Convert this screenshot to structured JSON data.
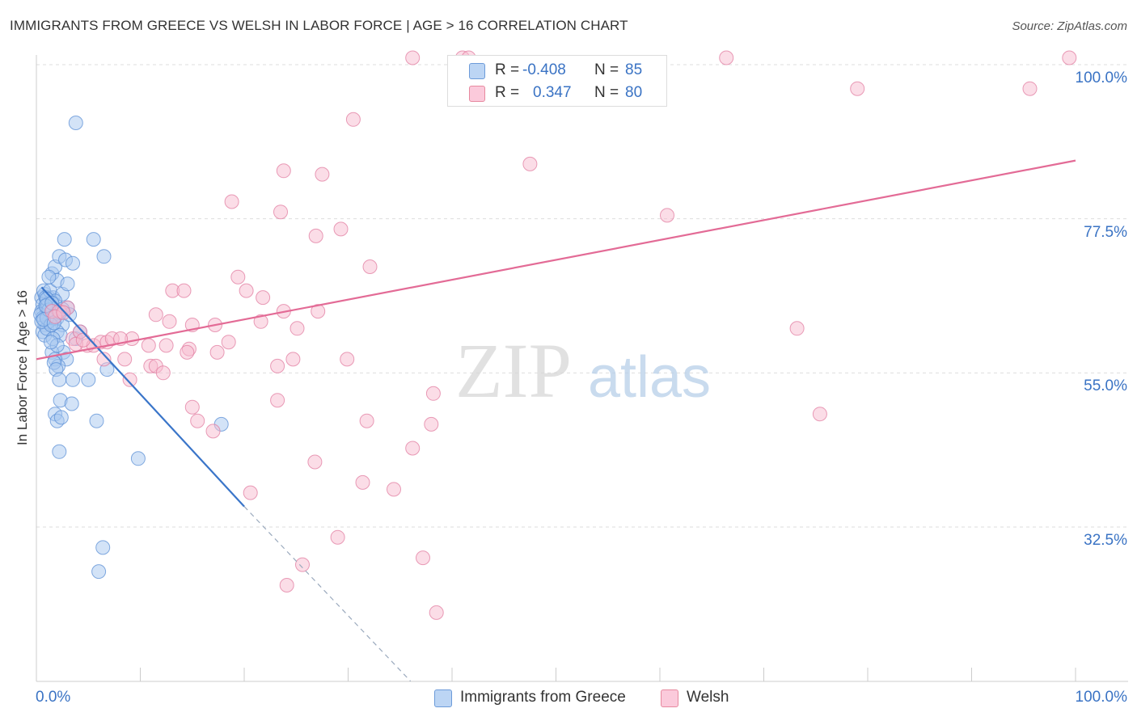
{
  "header": {
    "title": "IMMIGRANTS FROM GREECE VS WELSH IN LABOR FORCE | AGE > 16 CORRELATION CHART",
    "source": "Source: ZipAtlas.com"
  },
  "watermark": {
    "zip": "ZIP",
    "atlas": "atlas"
  },
  "legend": {
    "r_label": "R =",
    "n_label": "N =",
    "series": [
      {
        "name": "Immigrants from Greece",
        "r": "-0.408",
        "n": "85",
        "fill": "#a8c8f0",
        "stroke": "#5b8fd6"
      },
      {
        "name": "Welsh",
        "r": "0.347",
        "n": "80",
        "fill": "#f8bcd0",
        "stroke": "#e27ca0"
      }
    ]
  },
  "colors": {
    "blue_line": "#3a75c9",
    "pink_line": "#e36b96",
    "grid": "#dddddd",
    "axis_text": "#3a73c4"
  },
  "chart_data": {
    "type": "scatter",
    "title": "IMMIGRANTS FROM GREECE VS WELSH IN LABOR FORCE | AGE > 16 CORRELATION CHART",
    "xlabel": "",
    "ylabel": "In Labor Force | Age > 16",
    "xlim": [
      0,
      100
    ],
    "ylim": [
      10,
      102
    ],
    "x_tick_labels": [
      "0.0%",
      "100.0%"
    ],
    "y_ticks": [
      32.5,
      55.0,
      77.5,
      100.0
    ],
    "y_tick_labels": [
      "32.5%",
      "55.0%",
      "77.5%",
      "100.0%"
    ],
    "grid": true,
    "legend_position": "top-center",
    "series": [
      {
        "name": "Immigrants from Greece",
        "trend": {
          "x": [
            0.5,
            20
          ],
          "y": [
            67.5,
            35.5
          ],
          "dashed_to": [
            36,
            10
          ]
        },
        "points": [
          [
            0.5,
            66
          ],
          [
            0.6,
            65
          ],
          [
            0.7,
            64
          ],
          [
            0.8,
            66.5
          ],
          [
            0.9,
            63.5
          ],
          [
            1.0,
            65
          ],
          [
            1.1,
            64
          ],
          [
            1.2,
            66
          ],
          [
            1.3,
            63
          ],
          [
            1.4,
            65.5
          ],
          [
            0.5,
            64
          ],
          [
            0.6,
            63
          ],
          [
            0.8,
            62
          ],
          [
            1.0,
            64.5
          ],
          [
            1.2,
            62.5
          ],
          [
            1.5,
            64
          ],
          [
            1.6,
            66
          ],
          [
            1.8,
            65
          ],
          [
            0.7,
            67
          ],
          [
            0.9,
            66
          ],
          [
            1.1,
            65
          ],
          [
            1.3,
            67
          ],
          [
            0.6,
            61
          ],
          [
            0.8,
            60.5
          ],
          [
            1.0,
            61.5
          ],
          [
            2.0,
            63
          ],
          [
            2.5,
            62
          ],
          [
            3.0,
            64.5
          ],
          [
            3.2,
            63.5
          ],
          [
            1.7,
            63
          ],
          [
            1.5,
            69.5
          ],
          [
            1.8,
            70.5
          ],
          [
            2.2,
            72
          ],
          [
            2.8,
            71.5
          ],
          [
            3.5,
            71
          ],
          [
            2.0,
            68.5
          ],
          [
            2.5,
            66.5
          ],
          [
            3.0,
            68
          ],
          [
            1.2,
            69
          ],
          [
            2.7,
            74.5
          ],
          [
            5.5,
            74.5
          ],
          [
            6.5,
            72
          ],
          [
            1.8,
            65.5
          ],
          [
            2.0,
            61
          ],
          [
            2.3,
            60.5
          ],
          [
            2.6,
            58
          ],
          [
            2.9,
            57
          ],
          [
            1.5,
            58
          ],
          [
            1.8,
            57
          ],
          [
            2.1,
            56
          ],
          [
            1.7,
            56.5
          ],
          [
            1.9,
            55.5
          ],
          [
            2.2,
            54
          ],
          [
            3.5,
            54
          ],
          [
            5.0,
            54
          ],
          [
            6.8,
            55.5
          ],
          [
            2.3,
            51
          ],
          [
            3.4,
            50.5
          ],
          [
            1.8,
            49
          ],
          [
            2.0,
            48
          ],
          [
            2.4,
            48.5
          ],
          [
            5.8,
            48
          ],
          [
            17.8,
            47.5
          ],
          [
            2.2,
            43.5
          ],
          [
            9.8,
            42.5
          ],
          [
            0.4,
            63.5
          ],
          [
            0.5,
            62.5
          ],
          [
            1.0,
            63
          ],
          [
            1.4,
            62
          ],
          [
            1.6,
            60
          ],
          [
            3.8,
            60
          ],
          [
            4.2,
            61
          ],
          [
            2.0,
            59
          ],
          [
            1.4,
            59.5
          ],
          [
            6.4,
            29.5
          ],
          [
            6.0,
            26
          ],
          [
            3.8,
            91.5
          ],
          [
            1.0,
            65.8
          ],
          [
            1.2,
            64.2
          ],
          [
            0.9,
            64.8
          ],
          [
            1.5,
            65.2
          ],
          [
            2.3,
            63.8
          ],
          [
            0.7,
            62.8
          ],
          [
            1.7,
            62.3
          ],
          [
            2.5,
            64.3
          ]
        ]
      },
      {
        "name": "Welsh",
        "trend": {
          "x": [
            0,
            100
          ],
          "y": [
            57,
            86
          ]
        },
        "points": [
          [
            36.2,
            101
          ],
          [
            41,
            101
          ],
          [
            41.6,
            101
          ],
          [
            66.4,
            101
          ],
          [
            99.4,
            101
          ],
          [
            79,
            96.5
          ],
          [
            95.6,
            96.5
          ],
          [
            30.5,
            92
          ],
          [
            47.5,
            85.5
          ],
          [
            23.8,
            84.5
          ],
          [
            27.5,
            84
          ],
          [
            18.8,
            80
          ],
          [
            23.5,
            78.5
          ],
          [
            29.3,
            76
          ],
          [
            26.9,
            75
          ],
          [
            60.7,
            78
          ],
          [
            32.1,
            70.5
          ],
          [
            19.4,
            69
          ],
          [
            20.2,
            67
          ],
          [
            13.1,
            67
          ],
          [
            14.2,
            67
          ],
          [
            23.8,
            64
          ],
          [
            11.5,
            63.5
          ],
          [
            12.8,
            62.5
          ],
          [
            17.2,
            62
          ],
          [
            15,
            62
          ],
          [
            9.2,
            60
          ],
          [
            10.8,
            59
          ],
          [
            12.5,
            59
          ],
          [
            14.7,
            58.5
          ],
          [
            4.9,
            59
          ],
          [
            5.5,
            59
          ],
          [
            6.2,
            59.5
          ],
          [
            6.8,
            59.5
          ],
          [
            7.3,
            60
          ],
          [
            8.1,
            60
          ],
          [
            3.5,
            60
          ],
          [
            4.2,
            61
          ],
          [
            8.5,
            57
          ],
          [
            6.5,
            57
          ],
          [
            11,
            56
          ],
          [
            11.5,
            56
          ],
          [
            12.2,
            55
          ],
          [
            9,
            54
          ],
          [
            14.5,
            58
          ],
          [
            17.4,
            58
          ],
          [
            18.5,
            59.5
          ],
          [
            21.6,
            62.5
          ],
          [
            27.1,
            64
          ],
          [
            21.8,
            66
          ],
          [
            25.1,
            61.5
          ],
          [
            29.9,
            57
          ],
          [
            24.7,
            57
          ],
          [
            23.2,
            56
          ],
          [
            23.2,
            51
          ],
          [
            38.2,
            52
          ],
          [
            15,
            50
          ],
          [
            31.8,
            48
          ],
          [
            38,
            47.5
          ],
          [
            15.5,
            48
          ],
          [
            17,
            46.5
          ],
          [
            36.2,
            44
          ],
          [
            26.8,
            42
          ],
          [
            31.4,
            39
          ],
          [
            34.4,
            38
          ],
          [
            20.6,
            37.5
          ],
          [
            29,
            31
          ],
          [
            25.6,
            27
          ],
          [
            37.2,
            28
          ],
          [
            24.1,
            24
          ],
          [
            38.5,
            20
          ],
          [
            73.2,
            61.5
          ],
          [
            75.4,
            49
          ],
          [
            1.5,
            64
          ],
          [
            2.2,
            64
          ],
          [
            3.0,
            64.5
          ],
          [
            1.8,
            63.2
          ],
          [
            2.6,
            63.8
          ],
          [
            3.8,
            59.2
          ],
          [
            4.5,
            59.8
          ]
        ]
      }
    ]
  }
}
